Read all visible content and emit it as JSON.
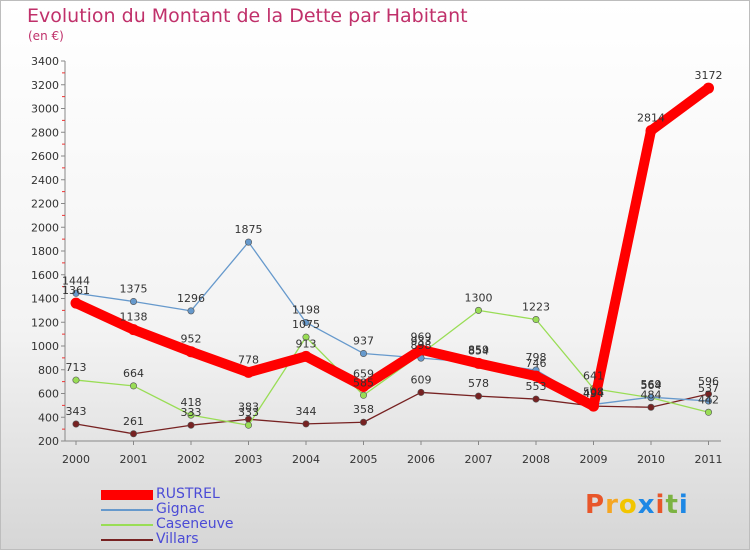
{
  "title": "Evolution du Montant de la Dette par Habitant",
  "subtitle": "(en €)",
  "logo": "Proxiti",
  "chart_data": {
    "type": "line",
    "x": [
      "2000",
      "2001",
      "2002",
      "2003",
      "2004",
      "2005",
      "2006",
      "2007",
      "2008",
      "2009",
      "2010",
      "2011"
    ],
    "ylim": [
      200,
      3400
    ],
    "yticks": [
      200,
      400,
      600,
      800,
      1000,
      1200,
      1400,
      1600,
      1800,
      2000,
      2200,
      2400,
      2600,
      2800,
      3000,
      3200,
      3400
    ],
    "grid": false,
    "legend_position": "bottom-left",
    "series": [
      {
        "name": "RUSTREL",
        "color": "#ff0000",
        "values": [
          1361,
          1138,
          952,
          778,
          913,
          659,
          969,
          854,
          746,
          494,
          2814,
          3172
        ],
        "labels": [
          "1361",
          "1138",
          "952",
          "778",
          "913",
          "659",
          "969",
          "854",
          "746",
          "494",
          "2814",
          "3172"
        ]
      },
      {
        "name": "Gignac",
        "color": "#6699cc",
        "values": [
          1444,
          1375,
          1296,
          1875,
          1198,
          937,
          898,
          859,
          798,
          508,
          569,
          537
        ],
        "labels": [
          "1444",
          "1375",
          "1296",
          "1875",
          "1198",
          "937",
          "898",
          "859",
          "798",
          "508",
          "569",
          "537"
        ]
      },
      {
        "name": "Caseneuve",
        "color": "#99dd55",
        "values": [
          713,
          664,
          418,
          333,
          1075,
          585,
          933,
          1300,
          1223,
          641,
          564,
          442
        ],
        "labels": [
          "713",
          "664",
          "418",
          "333",
          "1075",
          "585",
          "933",
          "1300",
          "1223",
          "641",
          "564",
          "442"
        ]
      },
      {
        "name": "Villars",
        "color": "#772222",
        "values": [
          343,
          261,
          333,
          383,
          344,
          358,
          609,
          578,
          553,
          494,
          484,
          596
        ],
        "labels": [
          "343",
          "261",
          "333",
          "383",
          "344",
          "358",
          "609",
          "578",
          "553",
          "494",
          "484",
          "596"
        ]
      }
    ]
  }
}
